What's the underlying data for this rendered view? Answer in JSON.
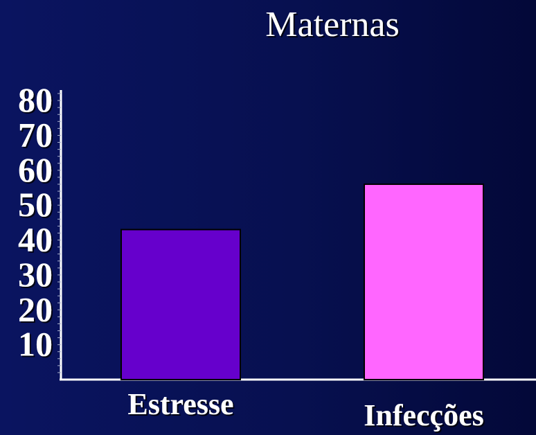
{
  "chart_data": {
    "type": "bar",
    "title": "Maternas",
    "categories": [
      "Estresse",
      "Infecções"
    ],
    "values": [
      43,
      56
    ],
    "colors": [
      "#6600cc",
      "#ff66ff"
    ],
    "bar_stroke": "#000000",
    "ylim": [
      0,
      83
    ],
    "yticks": [
      10,
      20,
      30,
      40,
      50,
      60,
      70,
      80
    ],
    "grid": false,
    "legend": "none",
    "axis_color": "#ffffff",
    "text_color": "#ffffff",
    "xlabel": "",
    "ylabel": ""
  }
}
